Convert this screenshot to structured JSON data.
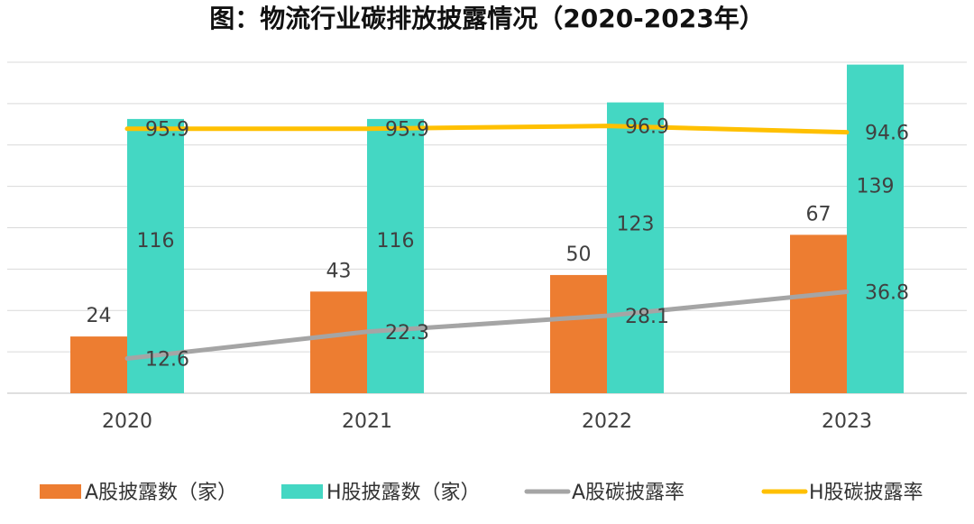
{
  "chart_data": {
    "type": "bar",
    "title": "图：物流行业碳排放披露情况（2020-2023年）",
    "categories": [
      "2020",
      "2021",
      "2022",
      "2023"
    ],
    "series": [
      {
        "name": "A股披露数（家）",
        "kind": "bar",
        "values": [
          24,
          43,
          50,
          67
        ],
        "color": "#ED7D31"
      },
      {
        "name": "H股披露数（家）",
        "kind": "bar",
        "values": [
          116,
          116,
          123,
          139
        ],
        "color": "#44D7C3"
      },
      {
        "name": "A股碳披露率",
        "kind": "line",
        "values": [
          12.6,
          22.3,
          28.1,
          36.8
        ],
        "color": "#A5A5A5"
      },
      {
        "name": "H股碳披露率",
        "kind": "line",
        "values": [
          95.9,
          95.9,
          96.9,
          94.6
        ],
        "color": "#FFC000"
      }
    ],
    "ylim_bars": [
      0,
      140
    ],
    "ylim_lines": [
      0,
      120
    ],
    "grid": true,
    "legend_position": "bottom"
  }
}
